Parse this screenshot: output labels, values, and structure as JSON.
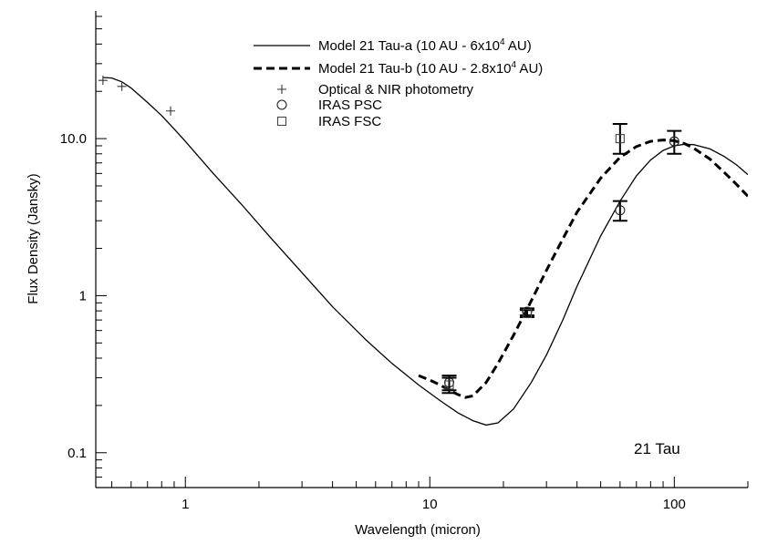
{
  "chart_data": {
    "type": "line",
    "title": "",
    "xlabel": "Wavelength (micron)",
    "ylabel": "Flux Density (Jansky)",
    "xscale": "log",
    "yscale": "log",
    "xlim": [
      0.43,
      200
    ],
    "ylim": [
      0.06,
      65
    ],
    "xticks": [
      {
        "value": 1,
        "label": "1"
      },
      {
        "value": 10,
        "label": "10"
      },
      {
        "value": 100,
        "label": "100"
      }
    ],
    "yticks": [
      {
        "value": 0.1,
        "label": "0.1"
      },
      {
        "value": 1,
        "label": "1"
      },
      {
        "value": 10,
        "label": "10.0"
      }
    ],
    "grid": false,
    "legend_position": "top-center",
    "annotation": "21 Tau",
    "series": [
      {
        "name": "Model 21 Tau-a",
        "legend": {
          "prefix": "Model 21 Tau-a (10 AU - 6x10",
          "sup": "4",
          "suffix": " AU)"
        },
        "style": "solid",
        "x": [
          0.46,
          0.5,
          0.55,
          0.6,
          0.7,
          0.8,
          0.9,
          1.0,
          1.3,
          1.7,
          2.2,
          3.0,
          4.0,
          5.5,
          7.0,
          9.0,
          11.0,
          13.0,
          15.0,
          17.0,
          19.0,
          22.0,
          26.0,
          30.0,
          35.0,
          40.0,
          50.0,
          60.0,
          70.0,
          80.0,
          90.0,
          100.0,
          110.0,
          120.0,
          140.0,
          160.0,
          180.0,
          200.0
        ],
        "y": [
          24.5,
          24.3,
          23.0,
          21.0,
          17.0,
          14.0,
          11.5,
          9.6,
          6.0,
          3.8,
          2.4,
          1.4,
          0.85,
          0.52,
          0.37,
          0.27,
          0.215,
          0.18,
          0.16,
          0.15,
          0.155,
          0.19,
          0.28,
          0.42,
          0.7,
          1.15,
          2.4,
          4.0,
          5.8,
          7.3,
          8.4,
          9.0,
          9.2,
          9.15,
          8.6,
          7.7,
          6.8,
          5.9
        ]
      },
      {
        "name": "Model 21 Tau-b",
        "legend": {
          "prefix": "Model 21 Tau-b (10 AU - 2.8x10",
          "sup": "4",
          "suffix": " AU)"
        },
        "style": "dashed",
        "x": [
          9.0,
          10.0,
          11.0,
          12.0,
          13.0,
          14.0,
          15.0,
          17.0,
          19.0,
          22.0,
          25.0,
          30.0,
          35.0,
          40.0,
          50.0,
          60.0,
          70.0,
          80.0,
          90.0,
          100.0,
          110.0,
          120.0,
          140.0,
          160.0,
          180.0,
          200.0
        ],
        "y": [
          0.31,
          0.29,
          0.27,
          0.25,
          0.235,
          0.225,
          0.23,
          0.28,
          0.37,
          0.56,
          0.82,
          1.45,
          2.3,
          3.4,
          5.6,
          7.6,
          8.9,
          9.6,
          9.8,
          9.7,
          9.3,
          8.7,
          7.4,
          6.1,
          5.1,
          4.3
        ]
      }
    ],
    "points": [
      {
        "name": "Optical & NIR photometry",
        "marker": "plus",
        "data": [
          {
            "x": 0.46,
            "y": 23.5
          },
          {
            "x": 0.55,
            "y": 21.5
          },
          {
            "x": 0.87,
            "y": 15.0
          }
        ]
      },
      {
        "name": "IRAS PSC",
        "marker": "circle",
        "data": [
          {
            "x": 12,
            "y": 0.28,
            "ylo": 0.25,
            "yhi": 0.31
          },
          {
            "x": 25,
            "y": 0.79,
            "ylo": 0.75,
            "yhi": 0.83
          },
          {
            "x": 60,
            "y": 3.5,
            "ylo": 3.0,
            "yhi": 4.0
          },
          {
            "x": 100,
            "y": 9.6,
            "ylo": 8.0,
            "yhi": 11.2
          }
        ]
      },
      {
        "name": "IRAS FSC",
        "marker": "square",
        "data": [
          {
            "x": 12,
            "y": 0.27,
            "ylo": 0.24,
            "yhi": 0.3
          },
          {
            "x": 25,
            "y": 0.77,
            "ylo": 0.73,
            "yhi": 0.81
          },
          {
            "x": 60,
            "y": 10.0,
            "ylo": 8.0,
            "yhi": 12.4
          }
        ]
      }
    ]
  }
}
